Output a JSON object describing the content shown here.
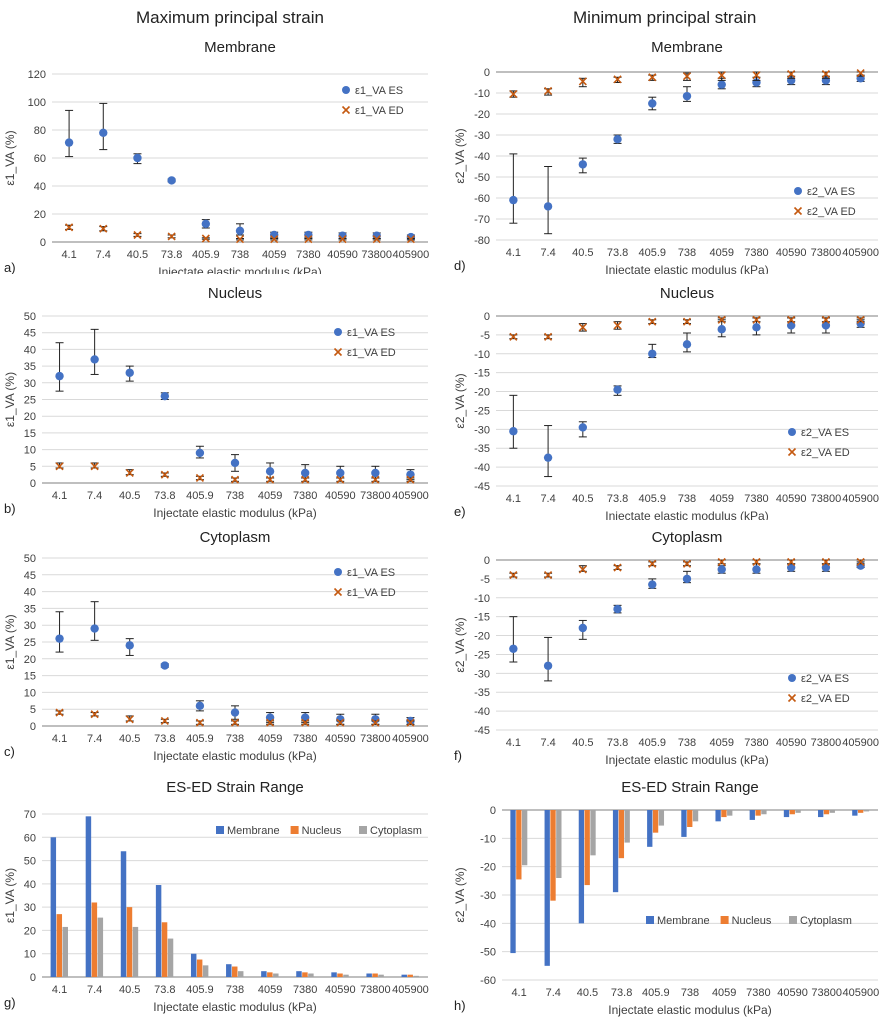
{
  "page": {
    "left_heading": "Maximum principal strain",
    "right_heading": "Minimum principal strain"
  },
  "colors": {
    "es": "#4472c4",
    "ed": "#c55a11",
    "membrane": "#4472c4",
    "nucleus": "#ed7d31",
    "cytoplasm": "#a5a5a5",
    "grid": "#d9d9d9",
    "axis": "#7f7f7f"
  },
  "chart_data": [
    {
      "id": "a",
      "panel_label": "a)",
      "type": "scatter",
      "title": "Membrane",
      "xlabel": "Injectate elastic modulus (kPa)",
      "ylabel": "ε1_VA (%)",
      "ylim": [
        0,
        120
      ],
      "yticks": [
        0,
        20,
        40,
        60,
        80,
        100,
        120
      ],
      "categories": [
        "4.1",
        "7.4",
        "40.5",
        "73.8",
        "405.9",
        "738",
        "4059",
        "7380",
        "40590",
        "73800",
        "405900"
      ],
      "legend_position": "right",
      "series": [
        {
          "name": "ε1_VA ES",
          "marker": "circle",
          "values": [
            71,
            78,
            60,
            44,
            13,
            8,
            5,
            5,
            4.5,
            4.5,
            3.5
          ],
          "err_low": [
            61,
            66,
            56,
            43,
            10,
            5,
            3,
            3,
            2.5,
            2.5,
            1.5
          ],
          "err_high": [
            94,
            99,
            63,
            45,
            16,
            13,
            7,
            7,
            6.5,
            6.5,
            5
          ]
        },
        {
          "name": "ε1_VA ED",
          "marker": "x",
          "values": [
            10.5,
            9.5,
            5,
            4,
            2.5,
            2,
            2,
            2,
            2,
            2,
            2
          ],
          "err_low": [
            9,
            8,
            4,
            3,
            2,
            1.5,
            1.5,
            1.5,
            1.5,
            1.5,
            1.5
          ],
          "err_high": [
            12,
            11,
            6,
            5,
            3,
            2.5,
            2.5,
            2.5,
            2.5,
            2.5,
            2.5
          ]
        }
      ]
    },
    {
      "id": "d",
      "panel_label": "d)",
      "type": "scatter",
      "title": "Membrane",
      "xlabel": "Injectate elastic modulus (kPa)",
      "ylabel": "ε2_VA (%)",
      "ylim": [
        -80,
        0
      ],
      "yticks": [
        0,
        -10,
        -20,
        -30,
        -40,
        -50,
        -60,
        -70,
        -80
      ],
      "categories": [
        "4.1",
        "7.4",
        "40.5",
        "73.8",
        "405.9",
        "738",
        "4059",
        "7380",
        "40590",
        "73800",
        "405900"
      ],
      "legend_position": "lower-right",
      "series": [
        {
          "name": "ε2_VA ES",
          "marker": "circle",
          "values": [
            -61,
            -64,
            -44,
            -32,
            -15,
            -11.5,
            -6,
            -5,
            -4,
            -4,
            -3
          ],
          "err_low": [
            -72,
            -77,
            -48,
            -34,
            -18,
            -14,
            -8,
            -7,
            -6,
            -6,
            -4.5
          ],
          "err_high": [
            -39,
            -45,
            -41,
            -30,
            -12,
            -7,
            -3,
            -2.5,
            -2,
            -2,
            -1.5
          ]
        },
        {
          "name": "ε2_VA ED",
          "marker": "x",
          "values": [
            -10.5,
            -9,
            -4.5,
            -3.5,
            -2.5,
            -2,
            -1.5,
            -1.5,
            -1,
            -1,
            -0.5
          ],
          "err_low": [
            -12,
            -11,
            -7,
            -5,
            -4,
            -4,
            -4,
            -4,
            -3,
            -3,
            -2
          ],
          "err_high": [
            -9,
            -8,
            -3,
            -2.5,
            -1.5,
            -0.5,
            0,
            0,
            0,
            0,
            0
          ]
        }
      ]
    },
    {
      "id": "b",
      "panel_label": "b)",
      "type": "scatter",
      "title": "Nucleus",
      "xlabel": "Injectate elastic modulus (kPa)",
      "ylabel": "ε1_VA (%)",
      "ylim": [
        0,
        50
      ],
      "yticks": [
        0,
        5,
        10,
        15,
        20,
        25,
        30,
        35,
        40,
        45,
        50
      ],
      "categories": [
        "4.1",
        "7.4",
        "40.5",
        "73.8",
        "405.9",
        "738",
        "4059",
        "7380",
        "40590",
        "73800",
        "405900"
      ],
      "legend_position": "right",
      "series": [
        {
          "name": "ε1_VA ES",
          "marker": "circle",
          "values": [
            32,
            37,
            33,
            26,
            9,
            6,
            3.5,
            3,
            3,
            3,
            2.5
          ],
          "err_low": [
            27.5,
            32.5,
            30.5,
            25,
            7.5,
            3.5,
            1.5,
            1.5,
            1.5,
            1.5,
            1
          ],
          "err_high": [
            42,
            46,
            35,
            27,
            11,
            8.5,
            6,
            5.5,
            5,
            5,
            4
          ]
        },
        {
          "name": "ε1_VA ED",
          "marker": "x",
          "values": [
            5,
            5,
            3,
            2.5,
            1.5,
            1,
            1,
            1,
            1,
            1,
            1
          ],
          "err_low": [
            4.5,
            4.5,
            2.5,
            2,
            1,
            0.5,
            0.5,
            0.5,
            0.5,
            0.5,
            0.5
          ],
          "err_high": [
            6,
            6,
            4,
            3,
            2,
            1.5,
            1.5,
            1.5,
            1.5,
            1.5,
            1.5
          ]
        }
      ]
    },
    {
      "id": "e",
      "panel_label": "e)",
      "type": "scatter",
      "title": "Nucleus",
      "xlabel": "Injectate elastic modulus (kPa)",
      "ylabel": "ε2_VA (%)",
      "ylim": [
        -45,
        0
      ],
      "yticks": [
        0,
        -5,
        -10,
        -15,
        -20,
        -25,
        -30,
        -35,
        -40,
        -45
      ],
      "categories": [
        "4.1",
        "7.4",
        "40.5",
        "73.8",
        "405.9",
        "738",
        "4059",
        "7380",
        "40590",
        "73800",
        "405900"
      ],
      "legend_position": "lower-right",
      "series": [
        {
          "name": "ε2_VA ES",
          "marker": "circle",
          "values": [
            -30.5,
            -37.5,
            -29.5,
            -19.5,
            -10,
            -7.5,
            -3.5,
            -3,
            -2.5,
            -2.5,
            -2
          ],
          "err_low": [
            -35,
            -42.5,
            -32,
            -21,
            -11,
            -9.5,
            -5.5,
            -5,
            -4.5,
            -4.5,
            -3
          ],
          "err_high": [
            -21,
            -29,
            -28,
            -18.5,
            -7.5,
            -4.5,
            -1,
            -0.5,
            -0.5,
            -0.5,
            -1
          ]
        },
        {
          "name": "ε2_VA ED",
          "marker": "x",
          "values": [
            -5.5,
            -5.5,
            -3,
            -2.5,
            -1.5,
            -1.5,
            -1,
            -1,
            -1,
            -1,
            -1
          ],
          "err_low": [
            -6,
            -6,
            -4,
            -3.5,
            -2,
            -2,
            -1.5,
            -1.5,
            -1.5,
            -1.5,
            -1.5
          ],
          "err_high": [
            -5,
            -5,
            -2,
            -1.5,
            -1,
            -1,
            -0.5,
            -0.5,
            -0.5,
            -0.5,
            -0.5
          ]
        }
      ]
    },
    {
      "id": "c",
      "panel_label": "c)",
      "type": "scatter",
      "title": "Cytoplasm",
      "xlabel": "Injectate elastic modulus (kPa)",
      "ylabel": "ε1_VA (%)",
      "ylim": [
        0,
        50
      ],
      "yticks": [
        0,
        5,
        10,
        15,
        20,
        25,
        30,
        35,
        40,
        45,
        50
      ],
      "categories": [
        "4.1",
        "7.4",
        "40.5",
        "73.8",
        "405.9",
        "738",
        "4059",
        "7380",
        "40590",
        "73800",
        "405900"
      ],
      "legend_position": "right",
      "series": [
        {
          "name": "ε1_VA ES",
          "marker": "circle",
          "values": [
            26,
            29,
            24,
            18,
            6,
            4,
            2.5,
            2.5,
            2,
            2,
            1.5
          ],
          "err_low": [
            22,
            25.5,
            21,
            17.5,
            4.5,
            2,
            1,
            1,
            0.5,
            0.5,
            0.5
          ],
          "err_high": [
            34,
            37,
            26,
            18.5,
            7.5,
            6,
            4,
            4,
            3.5,
            3.5,
            2.5
          ]
        },
        {
          "name": "ε1_VA ED",
          "marker": "x",
          "values": [
            4,
            3.5,
            2,
            1.5,
            1,
            1,
            1,
            1,
            1,
            1,
            1
          ],
          "err_low": [
            3.5,
            3,
            1.5,
            1,
            0.5,
            0.5,
            0.5,
            0.5,
            0.5,
            0.5,
            0.5
          ],
          "err_high": [
            4.5,
            4,
            3,
            2,
            1.5,
            1.5,
            1.5,
            1.5,
            1.5,
            1.5,
            1.5
          ]
        }
      ]
    },
    {
      "id": "f",
      "panel_label": "f)",
      "type": "scatter",
      "title": "Cytoplasm",
      "xlabel": "Injectate elastic modulus (kPa)",
      "ylabel": "ε2_VA (%)",
      "ylim": [
        -45,
        0
      ],
      "yticks": [
        0,
        -5,
        -10,
        -15,
        -20,
        -25,
        -30,
        -35,
        -40,
        -45
      ],
      "categories": [
        "4.1",
        "7.4",
        "40.5",
        "73.8",
        "405.9",
        "738",
        "4059",
        "7380",
        "40590",
        "73800",
        "405900"
      ],
      "legend_position": "lower-right",
      "series": [
        {
          "name": "ε2_VA ES",
          "marker": "circle",
          "values": [
            -23.5,
            -28,
            -18,
            -13,
            -6.5,
            -5,
            -2.5,
            -2.5,
            -2,
            -2,
            -1.5
          ],
          "err_low": [
            -27,
            -32,
            -21,
            -14,
            -7.5,
            -6,
            -3.5,
            -3.5,
            -3,
            -3,
            -2
          ],
          "err_high": [
            -15,
            -20.5,
            -16,
            -12,
            -5,
            -3,
            -1.5,
            -1,
            -1,
            -1,
            -0.5
          ]
        },
        {
          "name": "ε2_VA ED",
          "marker": "x",
          "values": [
            -4,
            -4,
            -2.5,
            -2,
            -1,
            -1,
            -0.5,
            -0.5,
            -0.5,
            -0.5,
            -0.5
          ],
          "err_low": [
            -4.5,
            -4.5,
            -3,
            -2.5,
            -1.5,
            -1.5,
            -1,
            -1,
            -1,
            -1,
            -1
          ],
          "err_high": [
            -3.5,
            -3.5,
            -1.5,
            -1.5,
            -0.5,
            -0.5,
            0,
            0,
            0,
            0,
            0
          ]
        }
      ]
    },
    {
      "id": "g",
      "panel_label": "g)",
      "type": "bar",
      "title": "ES-ED Strain Range",
      "xlabel": "Injectate elastic modulus (kPa)",
      "ylabel": "ε1_VA (%)",
      "ylim": [
        0,
        70
      ],
      "yticks": [
        0,
        10,
        20,
        30,
        40,
        50,
        60,
        70
      ],
      "categories": [
        "4.1",
        "7.4",
        "40.5",
        "73.8",
        "405.9",
        "738",
        "4059",
        "7380",
        "40590",
        "73800",
        "405900"
      ],
      "legend_position": "top-right",
      "series": [
        {
          "name": "Membrane",
          "values": [
            60,
            69,
            54,
            39.5,
            10,
            5.5,
            2.5,
            2.5,
            2,
            1.5,
            1
          ]
        },
        {
          "name": "Nucleus",
          "values": [
            27,
            32,
            30,
            23.5,
            7.5,
            4.5,
            2,
            2,
            1.5,
            1.5,
            1
          ]
        },
        {
          "name": "Cytoplasm",
          "values": [
            21.5,
            25.5,
            21.5,
            16.5,
            5,
            2.5,
            1.5,
            1.5,
            1,
            1,
            0.5
          ]
        }
      ]
    },
    {
      "id": "h",
      "panel_label": "h)",
      "type": "bar",
      "title": "ES-ED Strain Range",
      "xlabel": "Injectate elastic modulus (kPa)",
      "ylabel": "ε2_VA (%)",
      "ylim": [
        -60,
        0
      ],
      "yticks": [
        0,
        -10,
        -20,
        -30,
        -40,
        -50,
        -60
      ],
      "categories": [
        "4.1",
        "7.4",
        "40.5",
        "73.8",
        "405.9",
        "738",
        "4059",
        "7380",
        "40590",
        "73800",
        "405900"
      ],
      "legend_position": "lower-right",
      "series": [
        {
          "name": "Membrane",
          "values": [
            -50.5,
            -55,
            -40,
            -29,
            -13,
            -9.5,
            -4,
            -3.5,
            -2.5,
            -2.5,
            -2
          ]
        },
        {
          "name": "Nucleus",
          "values": [
            -24.5,
            -32,
            -26.5,
            -17,
            -8,
            -6,
            -2.5,
            -2,
            -1.5,
            -1.5,
            -1
          ]
        },
        {
          "name": "Cytoplasm",
          "values": [
            -19.5,
            -24,
            -16,
            -11.5,
            -5.5,
            -4,
            -2,
            -1.5,
            -1,
            -1,
            -0.5
          ]
        }
      ]
    }
  ]
}
